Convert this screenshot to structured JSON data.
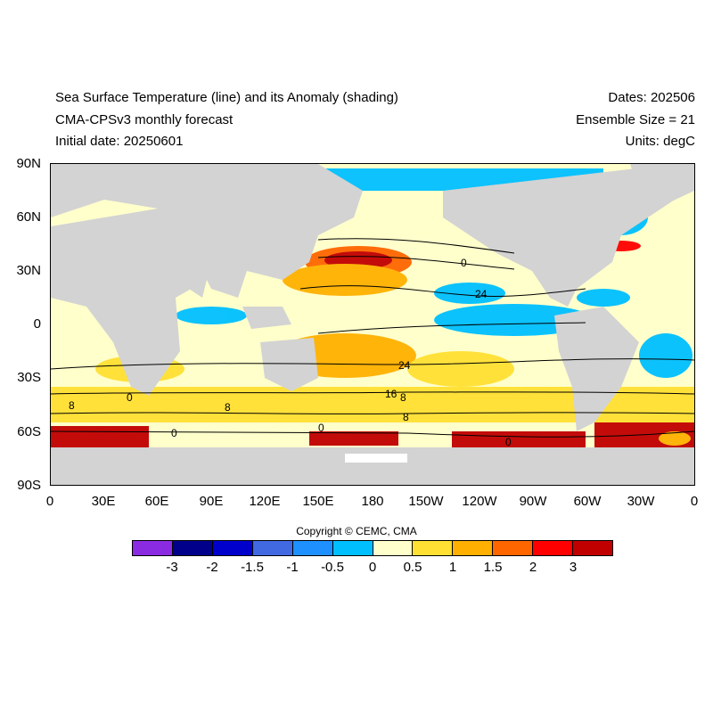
{
  "header": {
    "title_line1": "Sea Surface Temperature (line) and its Anomaly (shading)",
    "title_line2": "CMA-CPSv3 monthly forecast",
    "title_line3": "Initial date: 20250601",
    "right_line1": "Dates: 202506",
    "right_line2": "Ensemble Size = 21",
    "right_line3": "Units: degC"
  },
  "map": {
    "projection": "cylindrical-equidistant",
    "lon_range": [
      0,
      360
    ],
    "lat_range": [
      -90,
      90
    ],
    "land_color": "#d3d3d3",
    "y_ticks": [
      "90N",
      "60N",
      "30N",
      "0",
      "30S",
      "60S",
      "90S"
    ],
    "x_ticks": [
      "0",
      "30E",
      "60E",
      "90E",
      "120E",
      "150E",
      "180",
      "150W",
      "120W",
      "90W",
      "60W",
      "30W",
      "0"
    ],
    "contour_labels": [
      "24",
      "24",
      "16",
      "8",
      "8",
      "8",
      "0",
      "0",
      "0",
      "0",
      "0",
      "8"
    ]
  },
  "copyright": "Copyright © CEMC, CMA",
  "colorbar": {
    "colors": [
      "#8a2be2",
      "#00008b",
      "#0000cd",
      "#4169e1",
      "#1e90ff",
      "#00bfff",
      "#ffffcc",
      "#ffe033",
      "#ffb000",
      "#ff6600",
      "#ff0000",
      "#c00000"
    ],
    "labels": [
      "-3",
      "-2",
      "-1.5",
      "-1",
      "-0.5",
      "0",
      "0.5",
      "1",
      "1.5",
      "2",
      "3"
    ]
  }
}
